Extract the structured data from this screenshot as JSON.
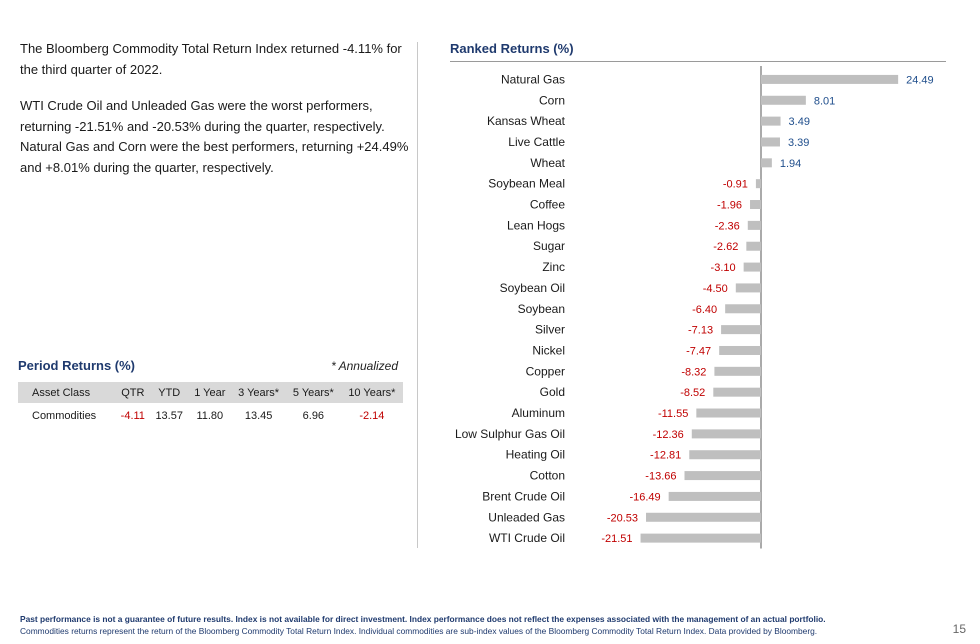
{
  "summary": {
    "paragraph1": "The Bloomberg Commodity Total Return Index returned -4.11% for the third quarter of 2022.",
    "paragraph2": "WTI Crude Oil and Unleaded Gas were the worst performers, returning -21.51% and -20.53% during the quarter, respectively. Natural Gas and Corn were the best performers, returning +24.49% and +8.01% during the quarter, respectively."
  },
  "period_returns": {
    "title": "Period Returns (%)",
    "note": "* Annualized",
    "headers": [
      "Asset Class",
      "QTR",
      "YTD",
      "1 Year",
      "3 Years*",
      "5 Years*",
      "10 Years*"
    ],
    "row": [
      "Commodities",
      "-4.11",
      "13.57",
      "11.80",
      "13.45",
      "6.96",
      "-2.14"
    ]
  },
  "colors": {
    "title": "#1f3a6e",
    "bar": "#bfbfbf",
    "positive_label": "#1f4e8c",
    "negative_label": "#c00000"
  },
  "chart_data": {
    "type": "bar",
    "orientation": "horizontal",
    "title": "Ranked Returns (%)",
    "categories": [
      "Natural Gas",
      "Corn",
      "Kansas Wheat",
      "Live Cattle",
      "Wheat",
      "Soybean Meal",
      "Coffee",
      "Lean Hogs",
      "Sugar",
      "Zinc",
      "Soybean Oil",
      "Soybean",
      "Silver",
      "Nickel",
      "Copper",
      "Gold",
      "Aluminum",
      "Low Sulphur Gas Oil",
      "Heating Oil",
      "Cotton",
      "Brent Crude Oil",
      "Unleaded Gas",
      "WTI Crude Oil"
    ],
    "values": [
      24.49,
      8.01,
      3.49,
      3.39,
      1.94,
      -0.91,
      -1.96,
      -2.36,
      -2.62,
      -3.1,
      -4.5,
      -6.4,
      -7.13,
      -7.47,
      -8.32,
      -8.52,
      -11.55,
      -12.36,
      -12.81,
      -13.66,
      -16.49,
      -20.53,
      -21.51
    ],
    "value_labels": [
      "24.49",
      "8.01",
      "3.49",
      "3.39",
      "1.94",
      "-0.91",
      "-1.96",
      "-2.36",
      "-2.62",
      "-3.10",
      "-4.50",
      "-6.40",
      "-7.13",
      "-7.47",
      "-8.32",
      "-8.52",
      "-11.55",
      "-12.36",
      "-12.81",
      "-13.66",
      "-16.49",
      "-20.53",
      "-21.51"
    ],
    "xlim": [
      -21.51,
      24.49
    ],
    "grid": false
  },
  "footer": {
    "disclaimer": "Past performance is not a guarantee of future results. Index is not available for direct investment. Index performance does not reflect the expenses associated with the management of an actual portfolio.",
    "source": "Commodities returns represent the return of the Bloomberg Commodity Total Return Index. Individual commodities are sub-index values of the Bloomberg Commodity Total Return Index. Data provided by Bloomberg.",
    "page_number": "15"
  }
}
